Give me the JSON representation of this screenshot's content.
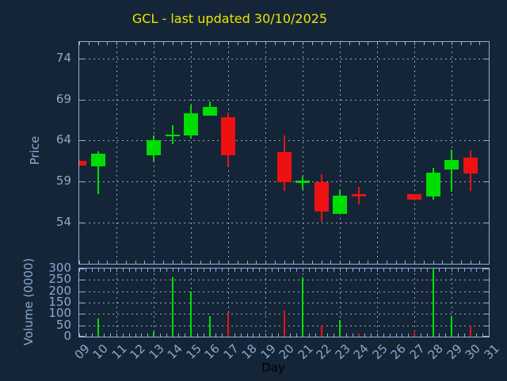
{
  "title": "GCL - last updated 30/10/2025",
  "chart_data": [
    {
      "type": "candlestick",
      "title": "GCL - last updated 30/10/2025",
      "xlabel": "Day",
      "ylabel": "Price",
      "xlim": [
        9,
        31
      ],
      "ylim": [
        49,
        76
      ],
      "yticks": [
        54,
        59,
        64,
        69,
        74
      ],
      "xtick_labels": [
        "09",
        "10",
        "11",
        "12",
        "13",
        "14",
        "15",
        "16",
        "17",
        "18",
        "19",
        "20",
        "21",
        "22",
        "23",
        "24",
        "25",
        "26",
        "27",
        "28",
        "29",
        "30",
        "31"
      ],
      "x_grid_days": [
        9,
        11,
        13,
        15,
        17,
        19,
        21,
        23,
        25,
        27,
        29,
        31
      ],
      "grid": true,
      "legend": false,
      "points": [
        {
          "day": 9,
          "open": 61.5,
          "high": 61.6,
          "low": 60.9,
          "close": 61.0
        },
        {
          "day": 10,
          "open": 60.9,
          "high": 62.7,
          "low": 57.5,
          "close": 62.4
        },
        {
          "day": 13,
          "open": 62.2,
          "high": 64.6,
          "low": 61.4,
          "close": 64.0
        },
        {
          "day": 14,
          "open": 64.5,
          "high": 65.9,
          "low": 63.6,
          "close": 64.7
        },
        {
          "day": 15,
          "open": 64.6,
          "high": 68.3,
          "low": 64.2,
          "close": 67.3
        },
        {
          "day": 16,
          "open": 67.0,
          "high": 68.8,
          "low": 67.0,
          "close": 68.1
        },
        {
          "day": 17,
          "open": 66.8,
          "high": 67.4,
          "low": 60.9,
          "close": 62.2
        },
        {
          "day": 20,
          "open": 62.6,
          "high": 64.6,
          "low": 57.9,
          "close": 58.9
        },
        {
          "day": 21,
          "open": 58.8,
          "high": 59.6,
          "low": 58.1,
          "close": 59.1
        },
        {
          "day": 22,
          "open": 58.9,
          "high": 59.9,
          "low": 54.1,
          "close": 55.4
        },
        {
          "day": 23,
          "open": 55.1,
          "high": 58.0,
          "low": 55.1,
          "close": 57.3
        },
        {
          "day": 24,
          "open": 57.5,
          "high": 58.4,
          "low": 56.2,
          "close": 57.2
        },
        {
          "day": 27,
          "open": 57.5,
          "high": 57.5,
          "low": 56.8,
          "close": 56.8
        },
        {
          "day": 28,
          "open": 57.2,
          "high": 60.7,
          "low": 56.8,
          "close": 60.1
        },
        {
          "day": 29,
          "open": 60.5,
          "high": 62.9,
          "low": 57.8,
          "close": 61.6
        },
        {
          "day": 30,
          "open": 61.9,
          "high": 62.8,
          "low": 57.9,
          "close": 60.0
        }
      ]
    },
    {
      "type": "bar",
      "ylabel": "Volume (0000)",
      "ylim": [
        0,
        300
      ],
      "yticks": [
        0,
        50,
        100,
        150,
        200,
        250,
        300
      ],
      "values": [
        {
          "day": 10,
          "value": 80
        },
        {
          "day": 13,
          "value": 20
        },
        {
          "day": 14,
          "value": 260
        },
        {
          "day": 15,
          "value": 200
        },
        {
          "day": 16,
          "value": 90
        },
        {
          "day": 17,
          "value": 103
        },
        {
          "day": 20,
          "value": 114
        },
        {
          "day": 21,
          "value": 260
        },
        {
          "day": 22,
          "value": 48
        },
        {
          "day": 23,
          "value": 75
        },
        {
          "day": 24,
          "value": 15
        },
        {
          "day": 27,
          "value": 16
        },
        {
          "day": 28,
          "value": 298
        },
        {
          "day": 29,
          "value": 92
        },
        {
          "day": 30,
          "value": 48
        }
      ]
    }
  ],
  "colors": {
    "background": "#152538",
    "axis": "#8fb2d6",
    "tick_label": "#8aa9cc",
    "grid": "#9aa5b0",
    "title": "#e8e500",
    "up": "#00dd00",
    "down": "#ee1111",
    "xlabel_text": "#000000"
  }
}
